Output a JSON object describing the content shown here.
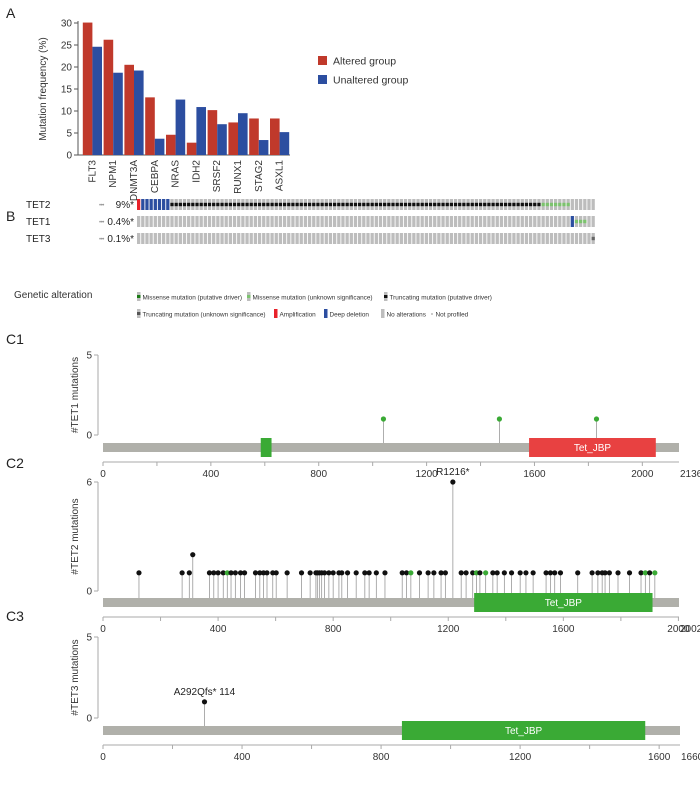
{
  "panel_labels": {
    "a": "A",
    "b": "B",
    "c1": "C1",
    "c2": "C2",
    "c3": "C3"
  },
  "colors": {
    "altered": "#c0392b",
    "unaltered": "#2c4ea0",
    "backbone": "#b0b0aa",
    "domain_green": "#3aaa35",
    "domain_red": "#e84141",
    "truncating": "#111111",
    "missense": "#3aaa35",
    "noalt": "#bdbdbd",
    "deep_deletion": "#2c4ea0",
    "amplification": "#e8212a"
  },
  "chart_data": [
    {
      "type": "bar",
      "panel": "A",
      "ylabel": "Mutation frequency (%)",
      "ylim": [
        0,
        30
      ],
      "yticks": [
        0,
        5,
        10,
        15,
        20,
        25,
        30
      ],
      "categories": [
        "FLT3",
        "NPM1",
        "DNMT3A",
        "CEBPA",
        "NRAS",
        "IDH2",
        "SRSF2",
        "RUNX1",
        "STAG2",
        "ASXL1"
      ],
      "series": [
        {
          "name": "Altered group",
          "values": [
            30.1,
            26.2,
            20.5,
            13.1,
            4.6,
            2.8,
            10.2,
            7.4,
            8.3,
            8.3
          ]
        },
        {
          "name": "Unaltered group",
          "values": [
            24.6,
            18.7,
            19.2,
            3.7,
            12.6,
            10.9,
            7.0,
            9.5,
            3.4,
            5.2
          ]
        }
      ],
      "legend": "right"
    },
    {
      "type": "table",
      "panel": "B",
      "rows": [
        {
          "gene": "TET2",
          "freq": "9%*",
          "samples": 110,
          "amp": [
            0
          ],
          "deep": [
            1,
            2,
            3,
            4,
            5,
            6,
            7
          ],
          "trunc": [
            8,
            9,
            10,
            11,
            12,
            13,
            14,
            15,
            16,
            17,
            18,
            19,
            20,
            21,
            22,
            23,
            24,
            25,
            26,
            27,
            28,
            29,
            30,
            31,
            32,
            33,
            34,
            35,
            36,
            37,
            38,
            39,
            40,
            41,
            42,
            43,
            44,
            45,
            46,
            47,
            48,
            49,
            50,
            51,
            52,
            53,
            54,
            55,
            56,
            57,
            58,
            59,
            60,
            61,
            62,
            63,
            64,
            65,
            66,
            67,
            68,
            69,
            70,
            71,
            72,
            73,
            74,
            75,
            76,
            77,
            78,
            79,
            80,
            81,
            82,
            83,
            84,
            85,
            86,
            87,
            88,
            89,
            90,
            91,
            92,
            93,
            94,
            95,
            96
          ],
          "missense_unknown": [
            97,
            98,
            99,
            100,
            101,
            102,
            103
          ],
          "trunc_unknown": []
        },
        {
          "gene": "TET1",
          "freq": "0.4%*",
          "samples": 110,
          "amp": [],
          "deep": [
            104
          ],
          "trunc": [],
          "missense_unknown": [
            105,
            106,
            107
          ],
          "trunc_unknown": []
        },
        {
          "gene": "TET3",
          "freq": "0.1%*",
          "samples": 110,
          "amp": [],
          "deep": [],
          "trunc": [],
          "missense_unknown": [],
          "trunc_unknown": [
            109
          ]
        }
      ],
      "legend_title": "Genetic alteration",
      "legend": [
        {
          "kind": "missense-driver",
          "label": "Missense mutation (putative driver)"
        },
        {
          "kind": "missense-unknown",
          "label": "Missense mutation (unknown significance)"
        },
        {
          "kind": "trunc-driver",
          "label": "Truncating mutation (putative driver)"
        },
        {
          "kind": "trunc-unknown",
          "label": "Truncating mutation (unknown significance)"
        },
        {
          "kind": "amp",
          "label": "Amplification"
        },
        {
          "kind": "deep",
          "label": "Deep deletion"
        },
        {
          "kind": "noalt",
          "label": "No alterations"
        },
        {
          "kind": "notprof",
          "label": "Not profiled"
        }
      ]
    },
    {
      "type": "lollipop",
      "panel": "C1",
      "ylabel": "#TET1 mutations",
      "ymax": 5,
      "yticks": [
        0,
        5
      ],
      "length": 2136,
      "length_label": "2136aa",
      "xticks": [
        0,
        400,
        800,
        1200,
        1600,
        2000
      ],
      "domains": [
        {
          "start": 585,
          "end": 625,
          "color": "domain_green",
          "label": ""
        },
        {
          "start": 1580,
          "end": 2050,
          "color": "domain_red",
          "label": "Tet_JBP"
        }
      ],
      "mutations": [
        {
          "pos": 1040,
          "count": 1,
          "type": "missense"
        },
        {
          "pos": 1470,
          "count": 1,
          "type": "missense"
        },
        {
          "pos": 1830,
          "count": 1,
          "type": "missense"
        }
      ]
    },
    {
      "type": "lollipop",
      "panel": "C2",
      "ylabel": "#TET2 mutations",
      "ymax": 6,
      "yticks": [
        0,
        6
      ],
      "length": 2002,
      "length_label": "2002aa",
      "xticks": [
        0,
        400,
        800,
        1200,
        1600,
        2000
      ],
      "domains": [
        {
          "start": 1290,
          "end": 1910,
          "color": "domain_green",
          "label": "Tet_JBP"
        }
      ],
      "annotation": {
        "label": "R1216*",
        "pos": 1216
      },
      "mutations": [
        {
          "pos": 125,
          "count": 1,
          "type": "truncating"
        },
        {
          "pos": 275,
          "count": 1,
          "type": "truncating"
        },
        {
          "pos": 300,
          "count": 1,
          "type": "truncating"
        },
        {
          "pos": 312,
          "count": 2,
          "type": "truncating"
        },
        {
          "pos": 370,
          "count": 1,
          "type": "truncating"
        },
        {
          "pos": 385,
          "count": 1,
          "type": "truncating"
        },
        {
          "pos": 400,
          "count": 1,
          "type": "truncating"
        },
        {
          "pos": 418,
          "count": 1,
          "type": "truncating"
        },
        {
          "pos": 432,
          "count": 1,
          "type": "missense"
        },
        {
          "pos": 445,
          "count": 1,
          "type": "truncating"
        },
        {
          "pos": 460,
          "count": 1,
          "type": "truncating"
        },
        {
          "pos": 478,
          "count": 1,
          "type": "truncating"
        },
        {
          "pos": 492,
          "count": 1,
          "type": "truncating"
        },
        {
          "pos": 530,
          "count": 1,
          "type": "truncating"
        },
        {
          "pos": 545,
          "count": 1,
          "type": "truncating"
        },
        {
          "pos": 558,
          "count": 1,
          "type": "truncating"
        },
        {
          "pos": 570,
          "count": 1,
          "type": "truncating"
        },
        {
          "pos": 590,
          "count": 1,
          "type": "truncating"
        },
        {
          "pos": 602,
          "count": 1,
          "type": "truncating"
        },
        {
          "pos": 640,
          "count": 1,
          "type": "truncating"
        },
        {
          "pos": 690,
          "count": 1,
          "type": "truncating"
        },
        {
          "pos": 720,
          "count": 1,
          "type": "truncating"
        },
        {
          "pos": 740,
          "count": 1,
          "type": "truncating"
        },
        {
          "pos": 745,
          "count": 1,
          "type": "truncating"
        },
        {
          "pos": 752,
          "count": 1,
          "type": "truncating"
        },
        {
          "pos": 760,
          "count": 1,
          "type": "truncating"
        },
        {
          "pos": 770,
          "count": 1,
          "type": "truncating"
        },
        {
          "pos": 785,
          "count": 1,
          "type": "truncating"
        },
        {
          "pos": 800,
          "count": 1,
          "type": "truncating"
        },
        {
          "pos": 820,
          "count": 1,
          "type": "truncating"
        },
        {
          "pos": 830,
          "count": 1,
          "type": "truncating"
        },
        {
          "pos": 850,
          "count": 1,
          "type": "truncating"
        },
        {
          "pos": 880,
          "count": 1,
          "type": "truncating"
        },
        {
          "pos": 910,
          "count": 1,
          "type": "truncating"
        },
        {
          "pos": 925,
          "count": 1,
          "type": "truncating"
        },
        {
          "pos": 950,
          "count": 1,
          "type": "truncating"
        },
        {
          "pos": 980,
          "count": 1,
          "type": "truncating"
        },
        {
          "pos": 1040,
          "count": 1,
          "type": "truncating"
        },
        {
          "pos": 1055,
          "count": 1,
          "type": "truncating"
        },
        {
          "pos": 1070,
          "count": 1,
          "type": "missense"
        },
        {
          "pos": 1100,
          "count": 1,
          "type": "truncating"
        },
        {
          "pos": 1130,
          "count": 1,
          "type": "truncating"
        },
        {
          "pos": 1150,
          "count": 1,
          "type": "truncating"
        },
        {
          "pos": 1175,
          "count": 1,
          "type": "truncating"
        },
        {
          "pos": 1190,
          "count": 1,
          "type": "truncating"
        },
        {
          "pos": 1216,
          "count": 6,
          "type": "truncating"
        },
        {
          "pos": 1245,
          "count": 1,
          "type": "truncating"
        },
        {
          "pos": 1262,
          "count": 1,
          "type": "truncating"
        },
        {
          "pos": 1285,
          "count": 1,
          "type": "truncating"
        },
        {
          "pos": 1298,
          "count": 1,
          "type": "missense"
        },
        {
          "pos": 1310,
          "count": 1,
          "type": "truncating"
        },
        {
          "pos": 1330,
          "count": 1,
          "type": "missense"
        },
        {
          "pos": 1355,
          "count": 1,
          "type": "truncating"
        },
        {
          "pos": 1370,
          "count": 1,
          "type": "truncating"
        },
        {
          "pos": 1395,
          "count": 1,
          "type": "truncating"
        },
        {
          "pos": 1420,
          "count": 1,
          "type": "truncating"
        },
        {
          "pos": 1450,
          "count": 1,
          "type": "truncating"
        },
        {
          "pos": 1470,
          "count": 1,
          "type": "truncating"
        },
        {
          "pos": 1495,
          "count": 1,
          "type": "truncating"
        },
        {
          "pos": 1540,
          "count": 1,
          "type": "truncating"
        },
        {
          "pos": 1555,
          "count": 1,
          "type": "truncating"
        },
        {
          "pos": 1570,
          "count": 1,
          "type": "truncating"
        },
        {
          "pos": 1590,
          "count": 1,
          "type": "truncating"
        },
        {
          "pos": 1650,
          "count": 1,
          "type": "truncating"
        },
        {
          "pos": 1700,
          "count": 1,
          "type": "truncating"
        },
        {
          "pos": 1720,
          "count": 1,
          "type": "truncating"
        },
        {
          "pos": 1735,
          "count": 1,
          "type": "truncating"
        },
        {
          "pos": 1745,
          "count": 1,
          "type": "truncating"
        },
        {
          "pos": 1760,
          "count": 1,
          "type": "truncating"
        },
        {
          "pos": 1790,
          "count": 1,
          "type": "truncating"
        },
        {
          "pos": 1830,
          "count": 1,
          "type": "truncating"
        },
        {
          "pos": 1870,
          "count": 1,
          "type": "truncating"
        },
        {
          "pos": 1885,
          "count": 1,
          "type": "missense"
        },
        {
          "pos": 1900,
          "count": 1,
          "type": "truncating"
        },
        {
          "pos": 1918,
          "count": 1,
          "type": "missense"
        }
      ]
    },
    {
      "type": "lollipop",
      "panel": "C3",
      "ylabel": "#TET3 mutations",
      "ymax": 5,
      "yticks": [
        0,
        5
      ],
      "length": 1660,
      "length_label": "1660aa",
      "xticks": [
        0,
        400,
        800,
        1200,
        1600
      ],
      "domains": [
        {
          "start": 860,
          "end": 1560,
          "color": "domain_green",
          "label": "Tet_JBP"
        }
      ],
      "annotation": {
        "label": "A292Qfs* 114",
        "pos": 292
      },
      "mutations": [
        {
          "pos": 292,
          "count": 1,
          "type": "truncating"
        }
      ]
    }
  ]
}
